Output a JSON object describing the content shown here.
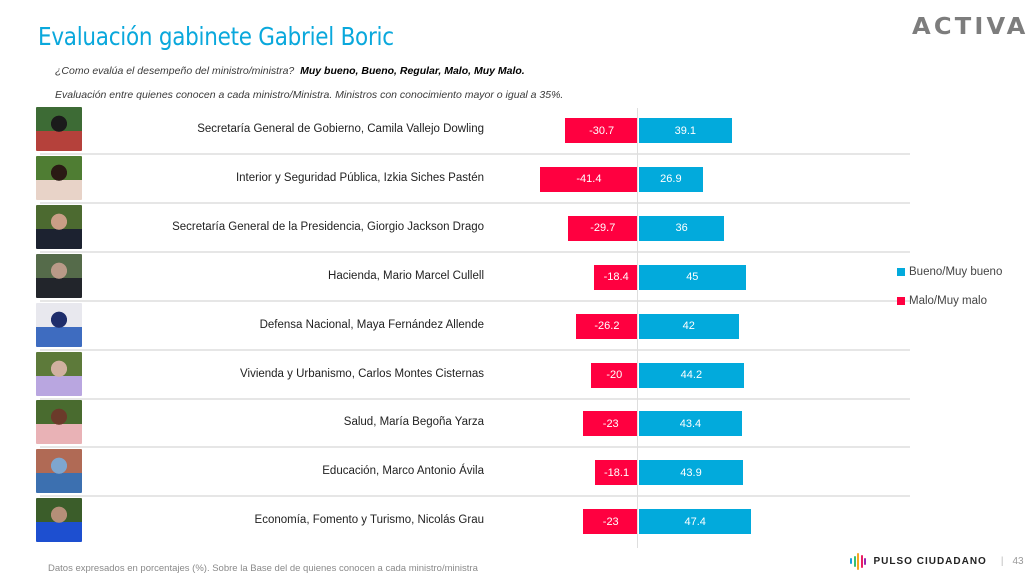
{
  "header": {
    "title": "Evaluación gabinete Gabriel Boric",
    "logo": "ACTIVA",
    "question_prefix": "¿Como evalúa el desempeño del ministro/ministra?",
    "question_options": "Muy bueno, Bueno, Regular, Malo, Muy Malo.",
    "subtitle": "Evaluación entre quienes conocen a cada ministro/Ministra. Ministros con conocimiento mayor o igual a 35%."
  },
  "legend": {
    "items": [
      {
        "label": "Bueno/Muy bueno",
        "color": "#02aadc"
      },
      {
        "label": "Malo/Muy malo",
        "color": "#ff0040"
      }
    ]
  },
  "colors": {
    "positive": "#02aadc",
    "negative": "#ff0040",
    "title": "#0aa8dc"
  },
  "rows": [
    {
      "label": "Secretaría General de Gobierno, Camila Vallejo Dowling",
      "neg": "-30.7",
      "pos": "39.1",
      "photo": [
        "#3d6b35",
        "#1b1b1b",
        "#b5413b"
      ]
    },
    {
      "label": "Interior y Seguridad Pública, Izkia Siches Pastén",
      "neg": "-41.4",
      "pos": "26.9",
      "photo": [
        "#4f7d33",
        "#2a1a14",
        "#e8d3c8"
      ]
    },
    {
      "label": "Secretaría General de la Presidencia, Giorgio Jackson Drago",
      "neg": "-29.7",
      "pos": "36",
      "photo": [
        "#4c6a30",
        "#c99e86",
        "#1c2230"
      ]
    },
    {
      "label": "Hacienda, Mario Marcel Cullell",
      "neg": "-18.4",
      "pos": "45",
      "photo": [
        "#556b4a",
        "#b99a88",
        "#22252b"
      ]
    },
    {
      "label": "Defensa Nacional, Maya Fernández Allende",
      "neg": "-26.2",
      "pos": "42",
      "photo": [
        "#e8e8ee",
        "#1e2d6b",
        "#3e6cc0"
      ]
    },
    {
      "label": "Vivienda y Urbanismo, Carlos Montes Cisternas",
      "neg": "-20",
      "pos": "44.2",
      "photo": [
        "#5d7a3a",
        "#d0b1a0",
        "#b9a6e0"
      ]
    },
    {
      "label": "Salud, María Begoña Yarza",
      "neg": "-23",
      "pos": "43.4",
      "photo": [
        "#496b2f",
        "#6b3a2a",
        "#e9b2b6"
      ]
    },
    {
      "label": "Educación, Marco Antonio Ávila",
      "neg": "-18.1",
      "pos": "43.9",
      "photo": [
        "#b06a55",
        "#7ea6cf",
        "#3c70b0"
      ]
    },
    {
      "label": "Economía, Fomento y Turismo, Nicolás Grau",
      "neg": "-23",
      "pos": "47.4",
      "photo": [
        "#3b5d2a",
        "#b58f78",
        "#1d4fd0"
      ]
    }
  ],
  "footer": {
    "note": "Datos expresados en porcentajes (%). Sobre la Base del de quienes conocen a cada ministro/ministra",
    "brand": "PULSO CIUDADANO",
    "page": "43"
  },
  "chart_data": {
    "type": "bar",
    "orientation": "horizontal",
    "stacking": "diverging",
    "title": "Evaluación gabinete Gabriel Boric",
    "subtitle": "Evaluación entre quienes conocen a cada ministro/Ministra. Ministros con conocimiento mayor o igual a 35%.",
    "categories": [
      "Secretaría General de Gobierno, Camila Vallejo Dowling",
      "Interior y Seguridad Pública, Izkia Siches Pastén",
      "Secretaría General de la Presidencia, Giorgio Jackson Drago",
      "Hacienda, Mario Marcel Cullell",
      "Defensa Nacional, Maya Fernández Allende",
      "Vivienda y Urbanismo, Carlos Montes Cisternas",
      "Salud, María Begoña Yarza",
      "Educación, Marco Antonio Ávila",
      "Economía, Fomento y Turismo, Nicolás Grau"
    ],
    "series": [
      {
        "name": "Bueno/Muy bueno",
        "color": "#02aadc",
        "values": [
          39.1,
          26.9,
          36,
          45,
          42,
          44.2,
          43.4,
          43.9,
          47.4
        ]
      },
      {
        "name": "Malo/Muy malo",
        "color": "#ff0040",
        "values": [
          -30.7,
          -41.4,
          -29.7,
          -18.4,
          -26.2,
          -20,
          -23,
          -18.1,
          -23
        ]
      }
    ],
    "xlabel": "",
    "ylabel": "",
    "unit": "%",
    "grid": false,
    "legend_position": "right",
    "data_labels": true
  }
}
